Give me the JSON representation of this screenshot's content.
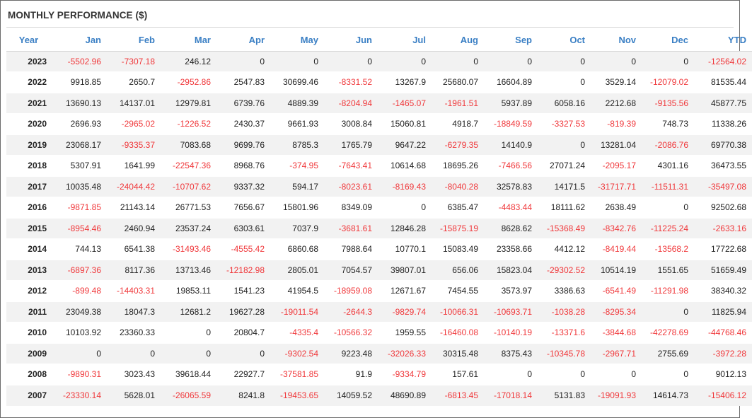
{
  "title": "MONTHLY PERFORMANCE ($)",
  "colors": {
    "header_text": "#3a7fc4",
    "negative": "#f0383b",
    "stripe": "#f2f2f2"
  },
  "columns": [
    "Year",
    "Jan",
    "Feb",
    "Mar",
    "Apr",
    "May",
    "Jun",
    "Jul",
    "Aug",
    "Sep",
    "Oct",
    "Nov",
    "Dec",
    "YTD"
  ],
  "rows": [
    [
      "2023",
      "-5502.96",
      "-7307.18",
      "246.12",
      "0",
      "0",
      "0",
      "0",
      "0",
      "0",
      "0",
      "0",
      "0",
      "-12564.02"
    ],
    [
      "2022",
      "9918.85",
      "2650.7",
      "-2952.86",
      "2547.83",
      "30699.46",
      "-8331.52",
      "13267.9",
      "25680.07",
      "16604.89",
      "0",
      "3529.14",
      "-12079.02",
      "81535.44"
    ],
    [
      "2021",
      "13690.13",
      "14137.01",
      "12979.81",
      "6739.76",
      "4889.39",
      "-8204.94",
      "-1465.07",
      "-1961.51",
      "5937.89",
      "6058.16",
      "2212.68",
      "-9135.56",
      "45877.75"
    ],
    [
      "2020",
      "2696.93",
      "-2965.02",
      "-1226.52",
      "2430.37",
      "9661.93",
      "3008.84",
      "15060.81",
      "4918.7",
      "-18849.59",
      "-3327.53",
      "-819.39",
      "748.73",
      "11338.26"
    ],
    [
      "2019",
      "23068.17",
      "-9335.37",
      "7083.68",
      "9699.76",
      "8785.3",
      "1765.79",
      "9647.22",
      "-6279.35",
      "14140.9",
      "0",
      "13281.04",
      "-2086.76",
      "69770.38"
    ],
    [
      "2018",
      "5307.91",
      "1641.99",
      "-22547.36",
      "8968.76",
      "-374.95",
      "-7643.41",
      "10614.68",
      "18695.26",
      "-7466.56",
      "27071.24",
      "-2095.17",
      "4301.16",
      "36473.55"
    ],
    [
      "2017",
      "10035.48",
      "-24044.42",
      "-10707.62",
      "9337.32",
      "594.17",
      "-8023.61",
      "-8169.43",
      "-8040.28",
      "32578.83",
      "14171.5",
      "-31717.71",
      "-11511.31",
      "-35497.08"
    ],
    [
      "2016",
      "-9871.85",
      "21143.14",
      "26771.53",
      "7656.67",
      "15801.96",
      "8349.09",
      "0",
      "6385.47",
      "-4483.44",
      "18111.62",
      "2638.49",
      "0",
      "92502.68"
    ],
    [
      "2015",
      "-8954.46",
      "2460.94",
      "23537.24",
      "6303.61",
      "7037.9",
      "-3681.61",
      "12846.28",
      "-15875.19",
      "8628.62",
      "-15368.49",
      "-8342.76",
      "-11225.24",
      "-2633.16"
    ],
    [
      "2014",
      "744.13",
      "6541.38",
      "-31493.46",
      "-4555.42",
      "6860.68",
      "7988.64",
      "10770.1",
      "15083.49",
      "23358.66",
      "4412.12",
      "-8419.44",
      "-13568.2",
      "17722.68"
    ],
    [
      "2013",
      "-6897.36",
      "8117.36",
      "13713.46",
      "-12182.98",
      "2805.01",
      "7054.57",
      "39807.01",
      "656.06",
      "15823.04",
      "-29302.52",
      "10514.19",
      "1551.65",
      "51659.49"
    ],
    [
      "2012",
      "-899.48",
      "-14403.31",
      "19853.11",
      "1541.23",
      "41954.5",
      "-18959.08",
      "12671.67",
      "7454.55",
      "3573.97",
      "3386.63",
      "-6541.49",
      "-11291.98",
      "38340.32"
    ],
    [
      "2011",
      "23049.38",
      "18047.3",
      "12681.2",
      "19627.28",
      "-19011.54",
      "-2644.3",
      "-9829.74",
      "-10066.31",
      "-10693.71",
      "-1038.28",
      "-8295.34",
      "0",
      "11825.94"
    ],
    [
      "2010",
      "10103.92",
      "23360.33",
      "0",
      "20804.7",
      "-4335.4",
      "-10566.32",
      "1959.55",
      "-16460.08",
      "-10140.19",
      "-13371.6",
      "-3844.68",
      "-42278.69",
      "-44768.46"
    ],
    [
      "2009",
      "0",
      "0",
      "0",
      "0",
      "-9302.54",
      "9223.48",
      "-32026.33",
      "30315.48",
      "8375.43",
      "-10345.78",
      "-2967.71",
      "2755.69",
      "-3972.28"
    ],
    [
      "2008",
      "-9890.31",
      "3023.43",
      "39618.44",
      "22927.7",
      "-37581.85",
      "91.9",
      "-9334.79",
      "157.61",
      "0",
      "0",
      "0",
      "0",
      "9012.13"
    ],
    [
      "2007",
      "-23330.14",
      "5628.01",
      "-26065.59",
      "8241.8",
      "-19453.65",
      "14059.52",
      "48690.89",
      "-6813.45",
      "-17018.14",
      "5131.83",
      "-19091.93",
      "14614.73",
      "-15406.12"
    ]
  ]
}
